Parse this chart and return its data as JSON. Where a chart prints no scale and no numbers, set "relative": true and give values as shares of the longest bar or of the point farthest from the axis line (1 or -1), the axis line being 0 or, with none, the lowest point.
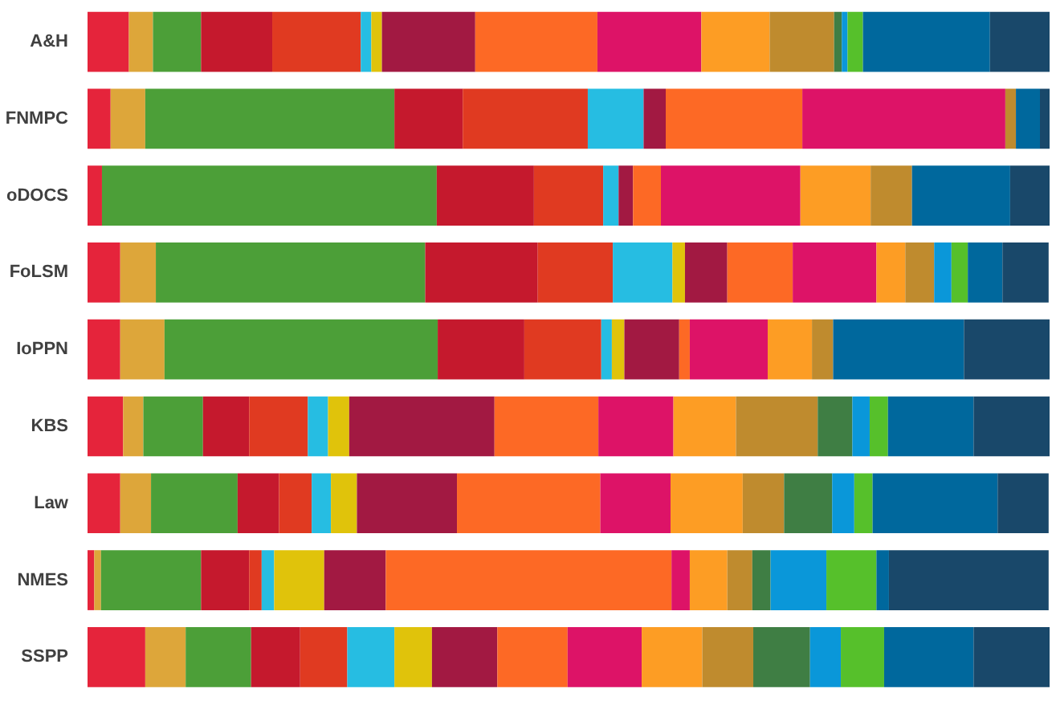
{
  "chart_data": {
    "type": "bar",
    "orientation": "horizontal",
    "stacked": true,
    "relative": true,
    "grid": false,
    "tick_labels": "y",
    "categories": [
      "A&H",
      "FNMPC",
      "oDOCS",
      "FoLSM",
      "IoPPN",
      "KBS",
      "Law",
      "NMES",
      "SSPP"
    ],
    "series": [
      {
        "color": "#e5243b",
        "values": [
          0.043,
          0.024,
          0.015,
          0.034,
          0.034,
          0.037,
          0.034,
          0.007,
          0.06
        ]
      },
      {
        "color": "#dda63a",
        "values": [
          0.025,
          0.036,
          null,
          0.037,
          0.046,
          0.021,
          0.032,
          0.007,
          0.042
        ]
      },
      {
        "color": "#4c9f38",
        "values": [
          0.05,
          0.259,
          0.348,
          0.28,
          0.284,
          0.062,
          0.09,
          0.104,
          0.068
        ]
      },
      {
        "color": "#c5192d",
        "values": [
          0.074,
          0.071,
          0.101,
          0.117,
          0.09,
          0.048,
          0.043,
          0.05,
          0.051
        ]
      },
      {
        "color": "#e03a21",
        "values": [
          0.092,
          0.13,
          0.072,
          0.078,
          0.08,
          0.061,
          0.034,
          0.013,
          0.049
        ]
      },
      {
        "color": "#26bde2",
        "values": [
          0.011,
          0.058,
          0.016,
          0.062,
          0.011,
          0.021,
          0.02,
          0.013,
          0.049
        ]
      },
      {
        "color": "#e0c30b",
        "values": [
          0.011,
          null,
          null,
          0.013,
          0.013,
          0.022,
          0.027,
          0.052,
          0.039
        ]
      },
      {
        "color": "#a21942",
        "values": [
          0.097,
          0.023,
          0.015,
          0.044,
          0.057,
          0.151,
          0.104,
          0.064,
          0.068
        ]
      },
      {
        "color": "#fd6925",
        "values": [
          0.127,
          0.142,
          0.029,
          0.068,
          0.011,
          0.108,
          0.149,
          0.297,
          0.073
        ]
      },
      {
        "color": "#dd1367",
        "values": [
          0.108,
          0.211,
          0.145,
          0.087,
          0.081,
          0.078,
          0.073,
          0.019,
          0.077
        ]
      },
      {
        "color": "#fd9d24",
        "values": [
          0.071,
          null,
          0.073,
          0.03,
          0.046,
          0.065,
          0.075,
          0.039,
          0.063
        ]
      },
      {
        "color": "#bf8b2e",
        "values": [
          0.067,
          0.011,
          0.043,
          0.03,
          0.022,
          0.085,
          0.043,
          0.026,
          0.053
        ]
      },
      {
        "color": "#3f7e44",
        "values": [
          0.008,
          null,
          null,
          null,
          null,
          0.036,
          0.05,
          0.019,
          0.059
        ]
      },
      {
        "color": "#0a97d9",
        "values": [
          0.006,
          null,
          null,
          0.018,
          null,
          0.018,
          0.023,
          0.058,
          0.032
        ]
      },
      {
        "color": "#56c02b",
        "values": [
          0.016,
          null,
          null,
          0.017,
          null,
          0.019,
          0.019,
          0.052,
          0.045
        ]
      },
      {
        "color": "#00689d",
        "values": [
          0.132,
          0.025,
          0.102,
          0.036,
          0.136,
          0.089,
          0.13,
          0.013,
          0.093
        ]
      },
      {
        "color": "#19486a",
        "values": [
          0.062,
          0.01,
          0.041,
          0.048,
          0.089,
          0.079,
          0.053,
          0.166,
          0.079
        ]
      }
    ]
  }
}
